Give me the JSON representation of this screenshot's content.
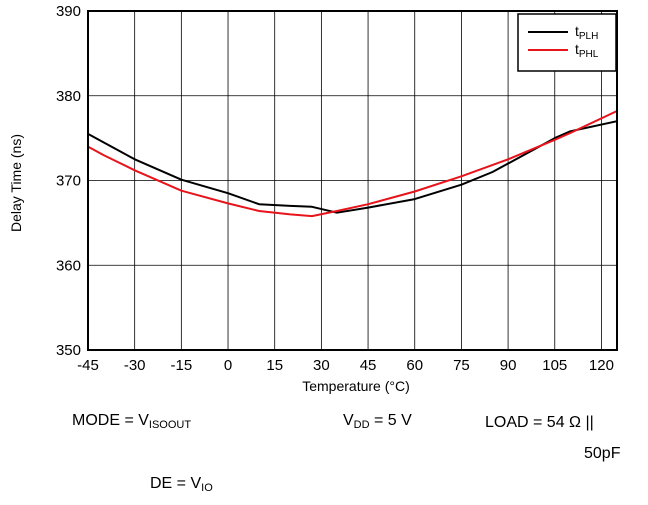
{
  "chart_data": {
    "type": "line",
    "xlabel": "Temperature (°C)",
    "ylabel": "Delay Time (ns)",
    "xlim": [
      -45,
      125
    ],
    "ylim": [
      350,
      390
    ],
    "x_ticks": [
      -45,
      -30,
      -15,
      0,
      15,
      30,
      45,
      60,
      75,
      90,
      105,
      120
    ],
    "y_ticks": [
      350,
      360,
      370,
      380,
      390
    ],
    "grid": true,
    "legend_position": "top-right",
    "series": [
      {
        "name": "tPLH",
        "name_main": "t",
        "name_sub": "PLH",
        "color": "#000000",
        "points": [
          [
            -45,
            375.5
          ],
          [
            -40,
            374.5
          ],
          [
            -30,
            372.5
          ],
          [
            -15,
            370.1
          ],
          [
            0,
            368.5
          ],
          [
            10,
            367.2
          ],
          [
            20,
            367.0
          ],
          [
            27,
            366.9
          ],
          [
            35,
            366.2
          ],
          [
            45,
            366.8
          ],
          [
            60,
            367.8
          ],
          [
            75,
            369.5
          ],
          [
            85,
            371.0
          ],
          [
            95,
            373.0
          ],
          [
            105,
            375.0
          ],
          [
            110,
            375.8
          ],
          [
            125,
            377.0
          ]
        ]
      },
      {
        "name": "tPHL",
        "name_main": "t",
        "name_sub": "PHL",
        "color": "#e8141b",
        "points": [
          [
            -45,
            374.0
          ],
          [
            -40,
            373.0
          ],
          [
            -30,
            371.2
          ],
          [
            -15,
            368.8
          ],
          [
            0,
            367.3
          ],
          [
            10,
            366.4
          ],
          [
            20,
            366.0
          ],
          [
            27,
            365.8
          ],
          [
            35,
            366.4
          ],
          [
            45,
            367.2
          ],
          [
            60,
            368.7
          ],
          [
            75,
            370.5
          ],
          [
            90,
            372.5
          ],
          [
            105,
            374.8
          ],
          [
            110,
            375.6
          ],
          [
            125,
            378.2
          ]
        ]
      }
    ]
  },
  "conditions": {
    "mode_prefix": "MODE = V",
    "mode_sub": "ISOOUT",
    "vdd_v": "V",
    "vdd_sub": "DD",
    "vdd_value": " = 5 V",
    "load": "LOAD = 54 Ω ||",
    "load_cap": "50pF",
    "de_prefix": "DE = V",
    "de_sub": "IO"
  }
}
